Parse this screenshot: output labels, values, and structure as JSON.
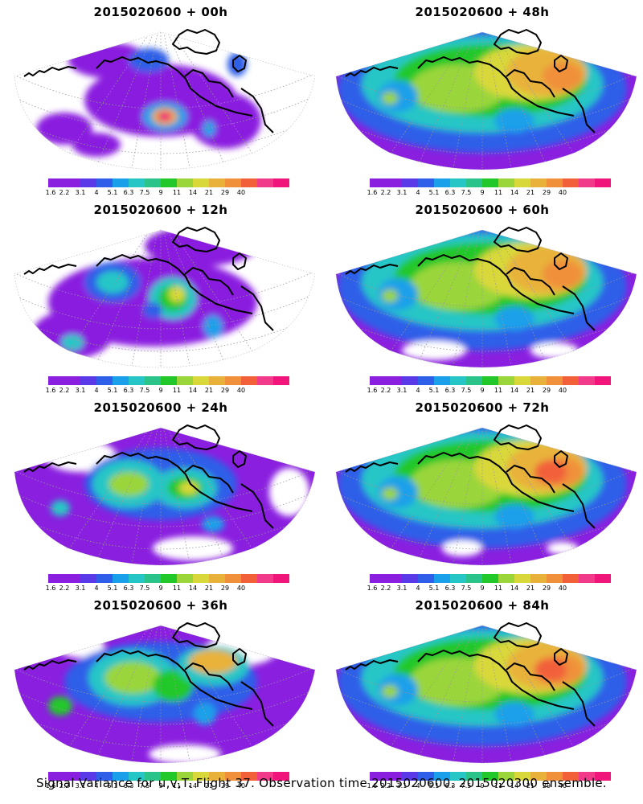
{
  "panels": [
    {
      "title": "2015020600 + 00h"
    },
    {
      "title": "2015020600 + 48h"
    },
    {
      "title": "2015020600 + 12h"
    },
    {
      "title": "2015020600 + 60h"
    },
    {
      "title": "2015020600 + 24h"
    },
    {
      "title": "2015020600 + 72h"
    },
    {
      "title": "2015020600 + 36h"
    },
    {
      "title": "2015020600 + 84h"
    }
  ],
  "colorbar": {
    "labels": [
      "1.6",
      "2.2",
      "3.1",
      "4",
      "5.1",
      "6.3",
      "7.5",
      "9",
      "11",
      "14",
      "21",
      "29",
      "40"
    ],
    "colors": [
      "#8a1fe0",
      "#8a1fe0",
      "#5a3ae8",
      "#2f5fe8",
      "#1aa0ea",
      "#27c6c6",
      "#2ac48a",
      "#22c82a",
      "#9ad63a",
      "#d9d83a",
      "#e8b23a",
      "#f0903a",
      "#f2603a",
      "#f23a8a",
      "#f0157a"
    ]
  },
  "footer": "Signal Variance for u,v,T. Flight 37. Observation time 2015020600. 2015020300 ensemble."
}
